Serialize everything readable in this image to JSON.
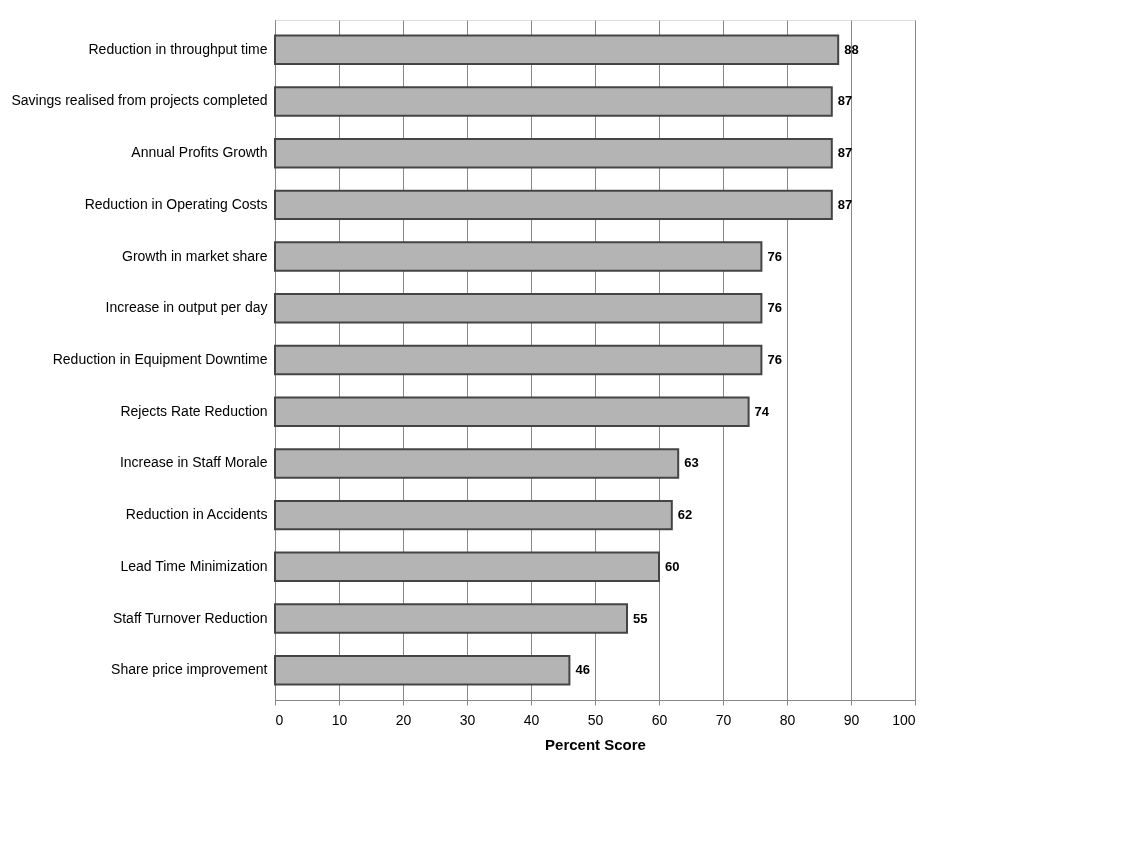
{
  "chart_data": {
    "type": "bar",
    "orientation": "horizontal",
    "xlabel": "Percent Score",
    "categories": [
      "Reduction in throughput time",
      "Savings realised from projects completed",
      "Annual Profits Growth",
      "Reduction in Operating Costs",
      "Growth in market share",
      "Increase in output per day",
      "Reduction in Equipment Downtime",
      "Rejects Rate Reduction",
      "Increase in Staff Morale",
      "Reduction in Accidents",
      "Lead Time Minimization",
      "Staff Turnover Reduction",
      "Share price improvement"
    ],
    "values": [
      88,
      87,
      87,
      87,
      76,
      76,
      76,
      74,
      63,
      62,
      60,
      55,
      46
    ],
    "color": "#b4b4b4",
    "xlim": [
      0,
      100
    ],
    "xticks": [
      0,
      10,
      20,
      30,
      40,
      50,
      60,
      70,
      80,
      90,
      100
    ],
    "grid": "x",
    "data_labels": true
  }
}
